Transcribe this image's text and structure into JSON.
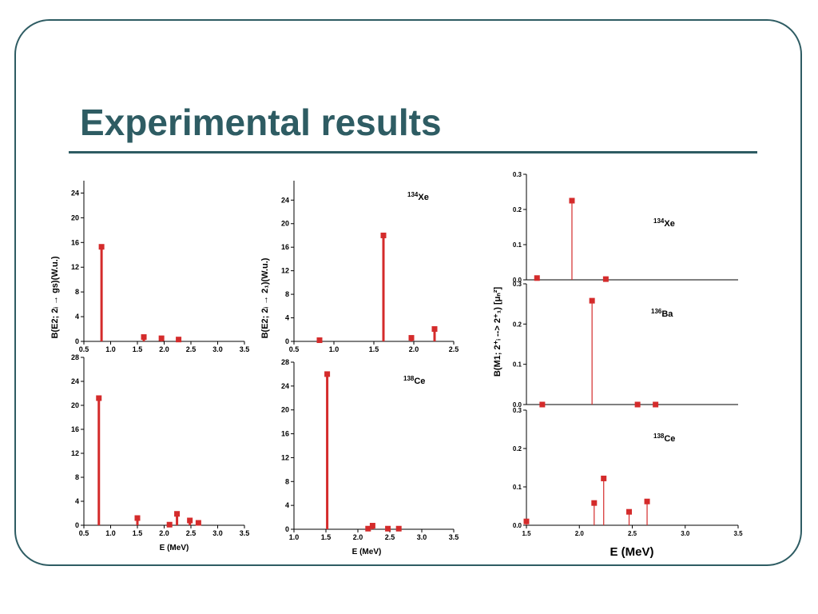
{
  "slide": {
    "title": "Experimental results",
    "colors": {
      "title": "#2e5c63",
      "frame": "#2e5c63",
      "marker": "#d42b2b",
      "axis": "#000000"
    }
  },
  "chart_data": [
    {
      "id": "p1",
      "type": "stem",
      "x": [
        0.83,
        1.62,
        1.95,
        2.27
      ],
      "values": [
        15.3,
        0.7,
        0.5,
        0.3
      ],
      "xlim": [
        0.5,
        3.5
      ],
      "ylim": [
        0,
        26
      ],
      "xticks": [
        "0.5",
        "1.0",
        "1.5",
        "2.0",
        "2.5",
        "3.0",
        "3.5"
      ],
      "yticks": [
        "0",
        "4",
        "8",
        "12",
        "16",
        "20",
        "24"
      ],
      "label": "",
      "xlabel": "",
      "ylabel": "",
      "grid": false
    },
    {
      "id": "p2",
      "type": "stem",
      "x": [
        0.82,
        1.62,
        1.97,
        2.26
      ],
      "values": [
        0.2,
        18.0,
        0.6,
        2.1
      ],
      "xlim": [
        0.5,
        2.5
      ],
      "ylim": [
        0,
        27.3
      ],
      "xticks": [
        "0.5",
        "1.0",
        "1.5",
        "2.0",
        "2.5"
      ],
      "yticks": [
        "0",
        "4",
        "8",
        "12",
        "16",
        "20",
        "24"
      ],
      "label": "Xe",
      "label_sup": "134",
      "xlabel": "",
      "ylabel": "",
      "grid": false
    },
    {
      "id": "p3",
      "type": "stem",
      "x": [
        0.78,
        1.5,
        2.1,
        2.24,
        2.48,
        2.64
      ],
      "values": [
        21.2,
        1.2,
        0.1,
        1.9,
        0.8,
        0.4
      ],
      "xlim": [
        0.5,
        3.5
      ],
      "ylim": [
        0,
        28
      ],
      "xticks": [
        "0.5",
        "1.0",
        "1.5",
        "2.0",
        "2.5",
        "3.0",
        "3.5"
      ],
      "yticks": [
        "0",
        "4",
        "8",
        "12",
        "16",
        "20",
        "24",
        "28"
      ],
      "label": "",
      "xlabel": "E (MeV)",
      "ylabel": "",
      "grid": false
    },
    {
      "id": "p4",
      "type": "stem",
      "x": [
        1.52,
        2.16,
        2.23,
        2.47,
        2.64
      ],
      "values": [
        26.0,
        0.1,
        0.6,
        0.1,
        0.1
      ],
      "xlim": [
        1.0,
        3.5
      ],
      "ylim": [
        0,
        28
      ],
      "xticks": [
        "1.0",
        "1.5",
        "2.0",
        "2.5",
        "3.0",
        "3.5"
      ],
      "yticks": [
        "0",
        "4",
        "8",
        "12",
        "16",
        "20",
        "24",
        "28"
      ],
      "label": "Ce",
      "label_sup": "138",
      "xlabel": "E (MeV)",
      "ylabel": "",
      "grid": false
    },
    {
      "id": "p5",
      "type": "stem",
      "x": [
        1.6,
        1.93,
        2.25
      ],
      "values": [
        0.005,
        0.225,
        0.002
      ],
      "xlim": [
        1.5,
        3.5
      ],
      "ylim": [
        0,
        0.3
      ],
      "xticks": [],
      "yticks": [
        "0.0",
        "0.1",
        "0.2",
        "0.3"
      ],
      "label": "Xe",
      "label_sup": "134",
      "xlabel": "",
      "ylabel": "",
      "grid": false
    },
    {
      "id": "p6",
      "type": "stem",
      "x": [
        1.65,
        2.12,
        2.55,
        2.72
      ],
      "values": [
        0.0,
        0.258,
        0.0,
        0.0
      ],
      "xlim": [
        1.5,
        3.5
      ],
      "ylim": [
        0,
        0.3
      ],
      "xticks": [],
      "yticks": [
        "0.0",
        "0.1",
        "0.2",
        "0.3"
      ],
      "label": "Ba",
      "label_sup": "136",
      "xlabel": "",
      "ylabel": "",
      "grid": false
    },
    {
      "id": "p7",
      "type": "stem",
      "x": [
        1.5,
        2.14,
        2.23,
        2.47,
        2.64
      ],
      "values": [
        0.01,
        0.058,
        0.122,
        0.035,
        0.062
      ],
      "xlim": [
        1.5,
        3.5
      ],
      "ylim": [
        0,
        0.3
      ],
      "xticks": [
        "1.5",
        "2.0",
        "2.5",
        "3.0",
        "3.5"
      ],
      "yticks": [
        "0.0",
        "0.1",
        "0.2",
        "0.3"
      ],
      "label": "Ce",
      "label_sup": "138",
      "xlabel": "E (MeV)",
      "ylabel": "",
      "grid": false
    }
  ],
  "shared_labels": {
    "ylabel_left": "B(E2; 2ᵢ → gs)(W.u.)",
    "ylabel_mid": "B(E2; 2ᵢ → 2₁)(W.u.)",
    "ylabel_right": "B(M1; 2⁺ᵢ --> 2⁺₁) [μₙ²]"
  }
}
